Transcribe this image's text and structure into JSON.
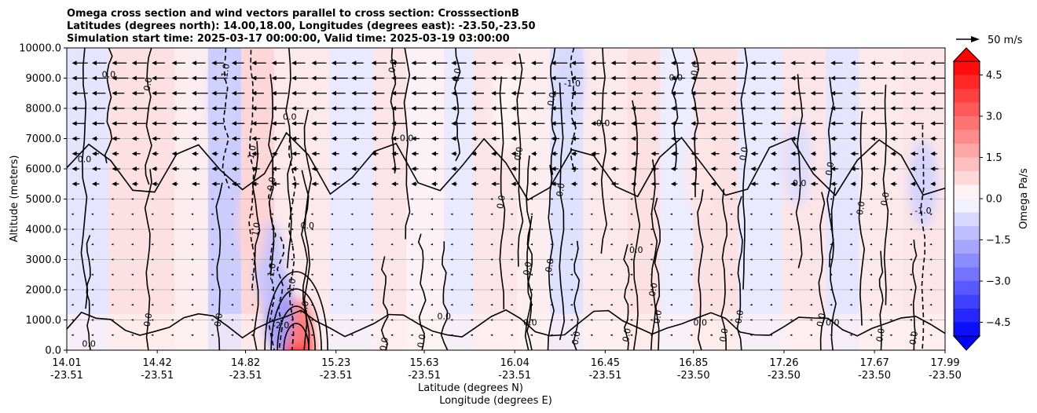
{
  "chart_data": {
    "type": "contour",
    "title_lines": [
      "Omega cross section and wind vectors parallel to cross section: CrosssectionB",
      "Latitudes (degrees north): 14.00,18.00, Longitudes (degrees east): -23.50,-23.50",
      "Simulation start time: 2025-03-17 00:00:00, Valid time: 2025-03-19 03:00:00"
    ],
    "xlabel_lines": [
      "Latitude (degrees N)",
      "Longitude (degrees E)"
    ],
    "ylabel": "Altitude (meters)",
    "ylim": [
      0,
      10000
    ],
    "xlim": [
      14.01,
      17.99
    ],
    "grid": "horizontal",
    "y_ticks": [
      {
        "value": 0,
        "label": "0.0"
      },
      {
        "value": 1000,
        "label": "1000.0"
      },
      {
        "value": 2000,
        "label": "2000.0"
      },
      {
        "value": 3000,
        "label": "3000.0"
      },
      {
        "value": 4000,
        "label": "4000.0"
      },
      {
        "value": 5000,
        "label": "5000.0"
      },
      {
        "value": 6000,
        "label": "6000.0"
      },
      {
        "value": 7000,
        "label": "7000.0"
      },
      {
        "value": 8000,
        "label": "8000.0"
      },
      {
        "value": 9000,
        "label": "9000.0"
      },
      {
        "value": 10000,
        "label": "10000.0"
      }
    ],
    "x_ticks": [
      {
        "lat": 14.01,
        "lat_label": "14.01",
        "lon_label": "-23.51"
      },
      {
        "lat": 14.42,
        "lat_label": "14.42",
        "lon_label": "-23.51"
      },
      {
        "lat": 14.82,
        "lat_label": "14.82",
        "lon_label": "-23.51"
      },
      {
        "lat": 15.23,
        "lat_label": "15.23",
        "lon_label": "-23.51"
      },
      {
        "lat": 15.63,
        "lat_label": "15.63",
        "lon_label": "-23.51"
      },
      {
        "lat": 16.04,
        "lat_label": "16.04",
        "lon_label": "-23.51"
      },
      {
        "lat": 16.45,
        "lat_label": "16.45",
        "lon_label": "-23.51"
      },
      {
        "lat": 16.85,
        "lat_label": "16.85",
        "lon_label": "-23.50"
      },
      {
        "lat": 17.26,
        "lat_label": "17.26",
        "lon_label": "-23.50"
      },
      {
        "lat": 17.67,
        "lat_label": "17.67",
        "lon_label": "-23.50"
      },
      {
        "lat": 17.99,
        "lat_label": "17.99",
        "lon_label": "-23.50"
      }
    ],
    "colorbar": {
      "label": "Omega Pa/s",
      "range": [
        -5.0,
        5.0
      ],
      "extend": "both",
      "ticks": [
        {
          "value": 4.5,
          "label": "4.5"
        },
        {
          "value": 3.0,
          "label": "3.0"
        },
        {
          "value": 1.5,
          "label": "1.5"
        },
        {
          "value": 0.0,
          "label": "0.0"
        },
        {
          "value": -1.5,
          "label": "−1.5"
        },
        {
          "value": -3.0,
          "label": "−3.0"
        },
        {
          "value": -4.5,
          "label": "−4.5"
        }
      ],
      "low_color": "#0000ff",
      "high_color": "#ff0000",
      "mid_color": "#ffffff"
    },
    "quiver_key": {
      "label": "50 m/s",
      "magnitude": 50
    },
    "wind_levels_m": [
      500,
      1000,
      1500,
      2000,
      2500,
      3000,
      3500,
      4000,
      4500,
      5000,
      5500,
      6000,
      6500,
      7000,
      7500,
      8000,
      8500,
      9000,
      9500
    ],
    "omega_features": [
      {
        "lat": 15.05,
        "alt": 300,
        "value": 4.5
      },
      {
        "lat": 15.05,
        "alt": 900,
        "value": 2.5
      },
      {
        "lat": 14.97,
        "alt": 1300,
        "value": -2.0
      },
      {
        "lat": 14.93,
        "alt": 2800,
        "value": -1.2
      },
      {
        "lat": 14.85,
        "alt": 4200,
        "value": 0.9
      },
      {
        "lat": 14.72,
        "alt": 8300,
        "value": -0.9
      },
      {
        "lat": 16.29,
        "alt": 9000,
        "value": -0.8
      },
      {
        "lat": 16.0,
        "alt": 8000,
        "value": 0.2
      },
      {
        "lat": 16.88,
        "alt": 5900,
        "value": 0.5
      },
      {
        "lat": 17.32,
        "alt": 6200,
        "value": -0.7
      },
      {
        "lat": 17.89,
        "alt": 5500,
        "value": -0.9
      }
    ],
    "contour_labels": [
      {
        "lat": 14.2,
        "alt": 9100,
        "text": "0.0"
      },
      {
        "lat": 14.38,
        "alt": 8800,
        "text": "0.0"
      },
      {
        "lat": 14.73,
        "alt": 9200,
        "text": "-1.0"
      },
      {
        "lat": 14.09,
        "alt": 6300,
        "text": "0.0"
      },
      {
        "lat": 14.85,
        "alt": 6500,
        "text": "-1.0"
      },
      {
        "lat": 14.94,
        "alt": 5500,
        "text": "0.0"
      },
      {
        "lat": 15.02,
        "alt": 7700,
        "text": "0.0"
      },
      {
        "lat": 14.87,
        "alt": 4000,
        "text": "1.0"
      },
      {
        "lat": 14.94,
        "alt": 2600,
        "text": "-1.0"
      },
      {
        "lat": 15.1,
        "alt": 4100,
        "text": "0.0"
      },
      {
        "lat": 15.03,
        "alt": 2100,
        "text": "-1.0"
      },
      {
        "lat": 15.09,
        "alt": 1400,
        "text": "1.0"
      },
      {
        "lat": 14.98,
        "alt": 800,
        "text": "-2.0"
      },
      {
        "lat": 14.38,
        "alt": 1000,
        "text": "0.0"
      },
      {
        "lat": 14.7,
        "alt": 1000,
        "text": "0.0"
      },
      {
        "lat": 14.11,
        "alt": 200,
        "text": "0.0"
      },
      {
        "lat": 15.49,
        "alt": 9400,
        "text": "0.0"
      },
      {
        "lat": 15.78,
        "alt": 9100,
        "text": "0.0"
      },
      {
        "lat": 15.55,
        "alt": 7000,
        "text": "0.0"
      },
      {
        "lat": 16.06,
        "alt": 6500,
        "text": "0.0"
      },
      {
        "lat": 16.21,
        "alt": 8300,
        "text": "0.0"
      },
      {
        "lat": 16.3,
        "alt": 8800,
        "text": "-1.0"
      },
      {
        "lat": 15.98,
        "alt": 4900,
        "text": "0.0"
      },
      {
        "lat": 16.25,
        "alt": 5300,
        "text": "0.0"
      },
      {
        "lat": 16.44,
        "alt": 7500,
        "text": "0.0"
      },
      {
        "lat": 16.2,
        "alt": 2800,
        "text": "0.0"
      },
      {
        "lat": 16.1,
        "alt": 2700,
        "text": "0.0"
      },
      {
        "lat": 15.72,
        "alt": 1100,
        "text": "0.0"
      },
      {
        "lat": 15.45,
        "alt": 200,
        "text": "0.0"
      },
      {
        "lat": 15.62,
        "alt": 300,
        "text": "0.0"
      },
      {
        "lat": 16.59,
        "alt": 3300,
        "text": "0.0"
      },
      {
        "lat": 16.67,
        "alt": 2000,
        "text": "0.0"
      },
      {
        "lat": 16.32,
        "alt": 400,
        "text": "0.0"
      },
      {
        "lat": 16.11,
        "alt": 900,
        "text": "0.0"
      },
      {
        "lat": 16.55,
        "alt": 500,
        "text": "0.0"
      },
      {
        "lat": 16.69,
        "alt": 1100,
        "text": "0.0"
      },
      {
        "lat": 16.77,
        "alt": 9000,
        "text": "0.0"
      },
      {
        "lat": 16.86,
        "alt": 9300,
        "text": "0.0"
      },
      {
        "lat": 17.08,
        "alt": 6500,
        "text": "0.0"
      },
      {
        "lat": 16.88,
        "alt": 900,
        "text": "0.0"
      },
      {
        "lat": 17.06,
        "alt": 1100,
        "text": "0.0"
      },
      {
        "lat": 16.99,
        "alt": 500,
        "text": "0.0"
      },
      {
        "lat": 17.33,
        "alt": 5500,
        "text": "0.0"
      },
      {
        "lat": 17.47,
        "alt": 6000,
        "text": "0.0"
      },
      {
        "lat": 17.43,
        "alt": 1000,
        "text": "0.0"
      },
      {
        "lat": 17.48,
        "alt": 900,
        "text": "0.0"
      },
      {
        "lat": 17.61,
        "alt": 4700,
        "text": "0.0"
      },
      {
        "lat": 17.72,
        "alt": 5000,
        "text": "0.0"
      },
      {
        "lat": 17.89,
        "alt": 4600,
        "text": "-1.0"
      },
      {
        "lat": 17.7,
        "alt": 500,
        "text": "0.0"
      },
      {
        "lat": 17.85,
        "alt": 400,
        "text": "0.0"
      }
    ]
  }
}
